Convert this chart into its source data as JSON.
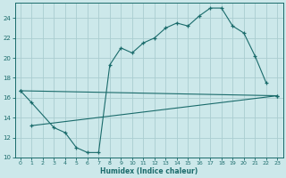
{
  "xlabel": "Humidex (Indice chaleur)",
  "bg_color": "#cce8ea",
  "grid_color": "#aacdd0",
  "line_color": "#1a6b6b",
  "ylim": [
    10,
    25.5
  ],
  "xlim": [
    -0.5,
    23.5
  ],
  "yticks": [
    10,
    12,
    14,
    16,
    18,
    20,
    22,
    24
  ],
  "xticks": [
    0,
    1,
    2,
    3,
    4,
    5,
    6,
    7,
    8,
    9,
    10,
    11,
    12,
    13,
    14,
    15,
    16,
    17,
    18,
    19,
    20,
    21,
    22,
    23
  ],
  "line1_x": [
    0,
    1,
    3,
    4,
    5,
    6,
    7,
    8,
    9,
    10,
    11,
    12,
    13,
    14,
    15,
    16,
    17,
    18,
    19,
    20,
    21,
    22
  ],
  "line1_y": [
    16.7,
    15.5,
    13.0,
    12.5,
    11.0,
    10.5,
    10.5,
    19.3,
    21.0,
    20.5,
    21.5,
    22.0,
    23.0,
    23.5,
    23.2,
    24.2,
    25.0,
    25.0,
    23.2,
    22.5,
    20.2,
    17.5
  ],
  "line2_x": [
    0,
    23
  ],
  "line2_y": [
    16.7,
    16.2
  ],
  "line3_x": [
    1,
    23
  ],
  "line3_y": [
    13.2,
    16.2
  ]
}
